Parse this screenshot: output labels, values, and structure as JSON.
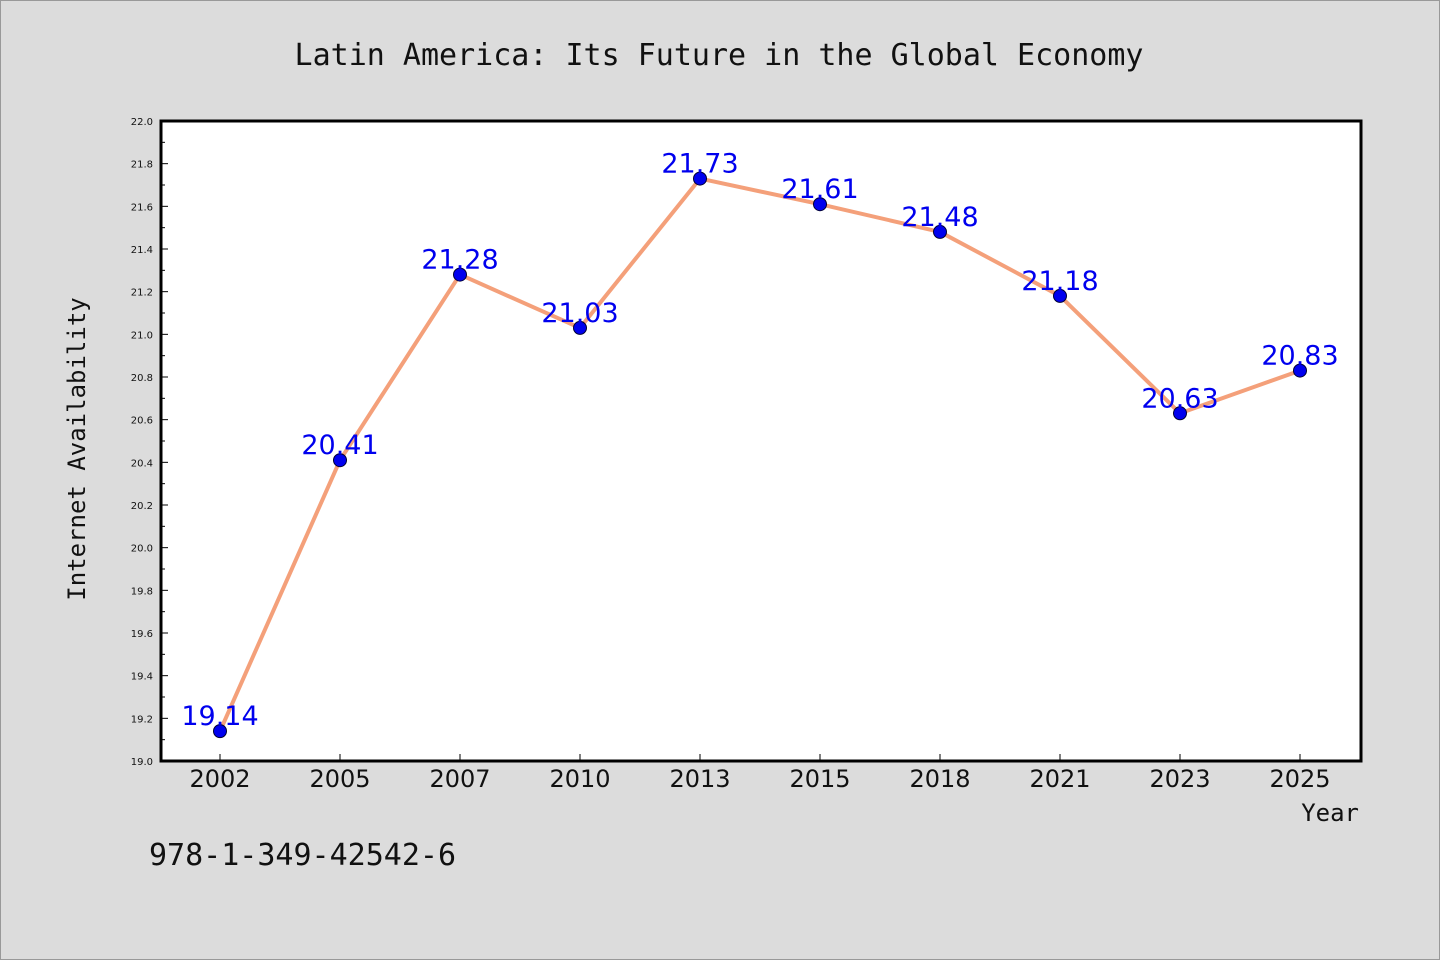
{
  "chart_data": {
    "type": "line",
    "title": "Latin America: Its Future in the Global Economy",
    "xlabel": "Year",
    "ylabel": "Internet Availability",
    "categories": [
      "2002",
      "2005",
      "2007",
      "2010",
      "2013",
      "2015",
      "2018",
      "2021",
      "2023",
      "2025"
    ],
    "series": [
      {
        "values": [
          19.14,
          20.41,
          21.28,
          21.03,
          21.73,
          21.61,
          21.48,
          21.18,
          20.63,
          20.83
        ],
        "data_labels": [
          "19.14",
          "20.41",
          "21.28",
          "21.03",
          "21.73",
          "21.61",
          "21.48",
          "21.18",
          "20.63",
          "20.83"
        ]
      }
    ],
    "ylim": [
      19.0,
      22.0
    ],
    "yticks": [
      "19.0",
      "19.2",
      "19.4",
      "19.6",
      "19.8",
      "20.0",
      "20.2",
      "20.4",
      "20.6",
      "20.8",
      "21.0",
      "21.2",
      "21.4",
      "21.6",
      "21.8",
      "22.0"
    ],
    "grid": false,
    "legend": "none",
    "colors": {
      "line": "#f4a07a",
      "marker": "#0000ee",
      "data_label": "#0000ee",
      "background": "#dcdcdc",
      "plot_background": "#ffffff"
    }
  },
  "footer_text": "978-1-349-42542-6"
}
